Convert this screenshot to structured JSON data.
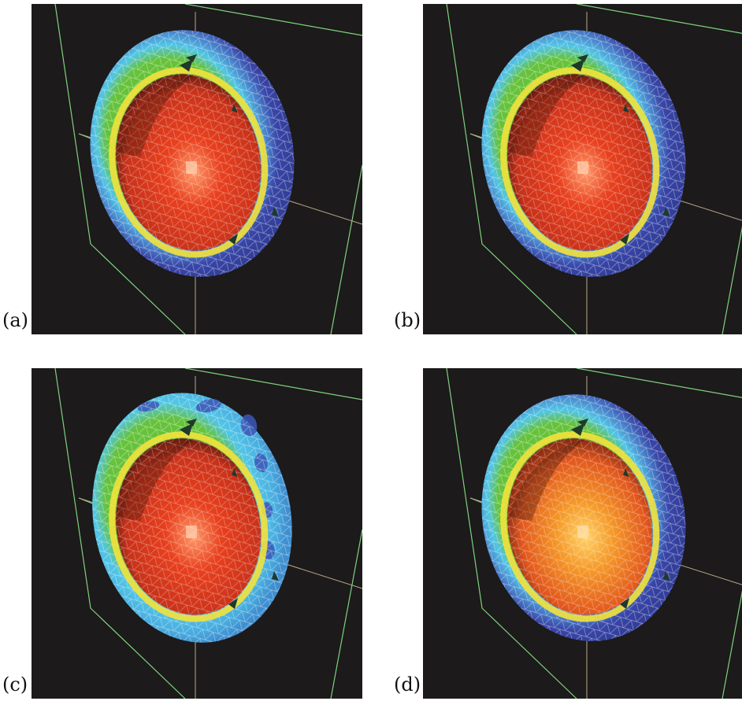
{
  "figure": {
    "panels": [
      {
        "label": "(a)",
        "outer_variant": "smooth"
      },
      {
        "label": "(b)",
        "outer_variant": "smooth"
      },
      {
        "label": "(c)",
        "outer_variant": "irregular"
      },
      {
        "label": "(d)",
        "outer_variant": "smooth-warm"
      }
    ],
    "colors": {
      "background": "#1c1a1a",
      "frame_lines": "#7fd17f",
      "axis_lines": "#b8a98a",
      "outer_blue": "#3946a8",
      "mid_cyan": "#52c6e6",
      "mid_green": "#66c23a",
      "ring_yellow": "#f2e23c",
      "core_red": "#e8401e",
      "core_orange": "#f59a2a"
    }
  }
}
